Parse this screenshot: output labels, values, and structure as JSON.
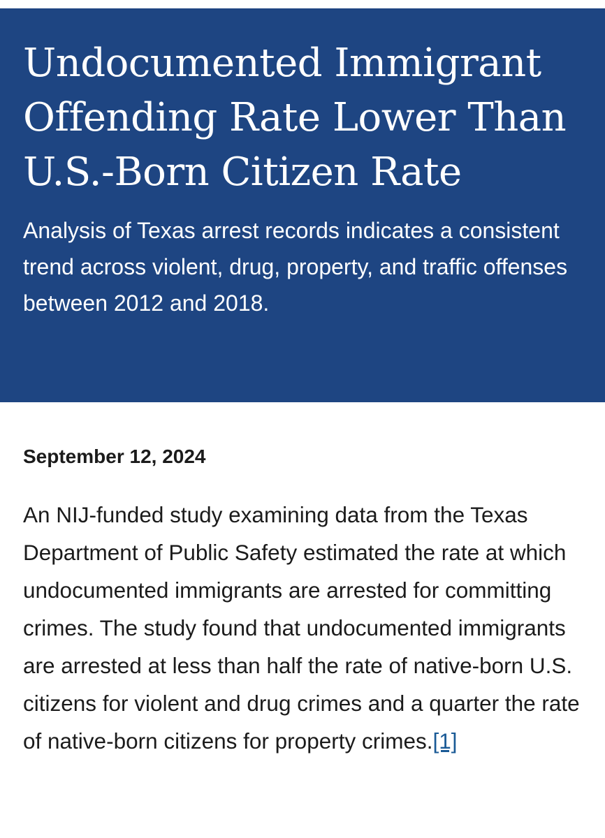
{
  "header": {
    "title": "Undocumented Immigrant Offending Rate Lower Than U.S.-Born Citizen Rate",
    "subtitle": "Analysis of Texas arrest records indicates a consistent trend across violent, drug, property, and traffic offenses between 2012 and 2018.",
    "background_color": "#1e4582"
  },
  "article": {
    "date": "September 12, 2024",
    "body": "An NIJ-funded study examining data from the Texas Department of Public Safety estimated the rate at which undocumented immigrants are arrested for committing crimes. The study found that undocumented immigrants are arrested at less than half the rate of native-born U.S. citizens for violent and drug crimes and a quarter the rate of native-born citizens for property crimes.",
    "footnote_label": "[1]",
    "link_color": "#1a5a96"
  }
}
